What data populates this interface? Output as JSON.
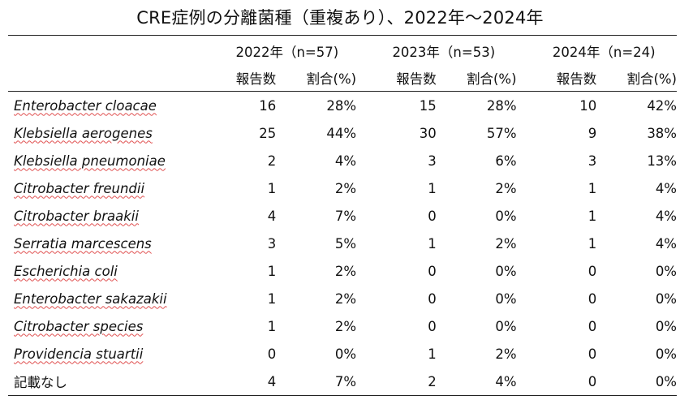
{
  "title": "CRE症例の分離菌種（重複あり）、2022年～2024年",
  "years": [
    {
      "label": "2022年（n=57)"
    },
    {
      "label": "2023年（n=53)"
    },
    {
      "label": "2024年（n=24)"
    }
  ],
  "subheaders": {
    "count": "報告数",
    "pct": "割合(%)"
  },
  "rows": [
    {
      "name": "Enterobacter cloacae",
      "latin": true,
      "vals": [
        "16",
        "28%",
        "15",
        "28%",
        "10",
        "42%"
      ]
    },
    {
      "name": "Klebsiella aerogenes",
      "latin": true,
      "vals": [
        "25",
        "44%",
        "30",
        "57%",
        "9",
        "38%"
      ]
    },
    {
      "name": "Klebsiella pneumoniae",
      "latin": true,
      "vals": [
        "2",
        "4%",
        "3",
        "6%",
        "3",
        "13%"
      ]
    },
    {
      "name": "Citrobacter freundii",
      "latin": true,
      "vals": [
        "1",
        "2%",
        "1",
        "2%",
        "1",
        "4%"
      ]
    },
    {
      "name": "Citrobacter braakii",
      "latin": true,
      "vals": [
        "4",
        "7%",
        "0",
        "0%",
        "1",
        "4%"
      ]
    },
    {
      "name": "Serratia marcescens",
      "latin": true,
      "vals": [
        "3",
        "5%",
        "1",
        "2%",
        "1",
        "4%"
      ]
    },
    {
      "name": "Escherichia coli",
      "latin": true,
      "vals": [
        "1",
        "2%",
        "0",
        "0%",
        "0",
        "0%"
      ]
    },
    {
      "name": "Enterobacter sakazakii",
      "latin": true,
      "vals": [
        "1",
        "2%",
        "0",
        "0%",
        "0",
        "0%"
      ]
    },
    {
      "name": "Citrobacter species",
      "latin": true,
      "vals": [
        "1",
        "2%",
        "0",
        "0%",
        "0",
        "0%"
      ]
    },
    {
      "name": "Providencia stuartii",
      "latin": true,
      "vals": [
        "0",
        "0%",
        "1",
        "2%",
        "0",
        "0%"
      ]
    },
    {
      "name": "記載なし",
      "latin": false,
      "vals": [
        "4",
        "7%",
        "2",
        "4%",
        "0",
        "0%"
      ]
    }
  ]
}
